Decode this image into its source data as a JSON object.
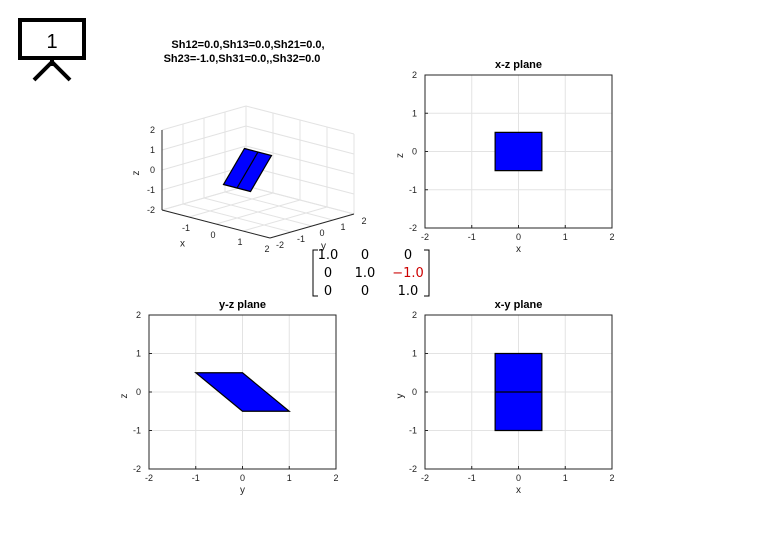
{
  "slide_number": "1",
  "title3d_line1": "Sh12=0.0,Sh13=0.0,Sh21=0.0,",
  "title3d_line2": "Sh23=-1.0,Sh31=0.0,,Sh32=0.0",
  "matrix": [
    [
      "1.0",
      "0",
      "0"
    ],
    [
      "0",
      "1.0",
      "−1.0"
    ],
    [
      "0",
      "0",
      "1.0"
    ]
  ],
  "colors": {
    "shape_fill": "#0000ff",
    "highlight": "#cc0000"
  },
  "icon": "presentation-board-icon",
  "chart_data": [
    {
      "type": "3d-surface",
      "title": "Sh12=0.0,Sh13=0.0,Sh21=0.0,\nSh23=-1.0,Sh31=0.0,,Sh32=0.0",
      "xlabel": "x",
      "ylabel": "y",
      "zlabel": "z",
      "xticks": [
        "-1",
        "0",
        "1",
        "2"
      ],
      "yticks": [
        "-2",
        "-1",
        "0",
        "1",
        "2"
      ],
      "zticks": [
        "-2",
        "-1",
        "0",
        "1",
        "2"
      ],
      "xlim": [
        -2,
        2
      ],
      "ylim": [
        -2,
        2
      ],
      "zlim": [
        -2,
        2
      ],
      "polygon": [
        [
          -0.5,
          -1,
          -0.5
        ],
        [
          0.5,
          -1,
          -0.5
        ],
        [
          0.5,
          0,
          1
        ],
        [
          -0.5,
          0,
          1
        ]
      ]
    },
    {
      "type": "area",
      "title": "x-z plane",
      "xlabel": "x",
      "ylabel": "z",
      "xlim": [
        -2,
        2
      ],
      "ylim": [
        -2,
        2
      ],
      "xticks": [
        "-2",
        "-1",
        "0",
        "1",
        "2"
      ],
      "yticks": [
        "-2",
        "-1",
        "0",
        "1",
        "2"
      ],
      "polygon": [
        [
          -0.5,
          -0.5
        ],
        [
          0.5,
          -0.5
        ],
        [
          0.5,
          0.5
        ],
        [
          -0.5,
          0.5
        ]
      ],
      "midline": null
    },
    {
      "type": "area",
      "title": "y-z plane",
      "xlabel": "y",
      "ylabel": "z",
      "xlim": [
        -2,
        2
      ],
      "ylim": [
        -2,
        2
      ],
      "xticks": [
        "-2",
        "-1",
        "0",
        "1",
        "2"
      ],
      "yticks": [
        "-2",
        "-1",
        "0",
        "1",
        "2"
      ],
      "polygon": [
        [
          -1,
          0.5
        ],
        [
          0,
          0.5
        ],
        [
          1,
          -0.5
        ],
        [
          0,
          -0.5
        ]
      ],
      "midline": null
    },
    {
      "type": "area",
      "title": "x-y plane",
      "xlabel": "x",
      "ylabel": "y",
      "xlim": [
        -2,
        2
      ],
      "ylim": [
        -2,
        2
      ],
      "xticks": [
        "-2",
        "-1",
        "0",
        "1",
        "2"
      ],
      "yticks": [
        "-2",
        "-1",
        "0",
        "1",
        "2"
      ],
      "polygon": [
        [
          -0.5,
          -1
        ],
        [
          0.5,
          -1
        ],
        [
          0.5,
          1
        ],
        [
          -0.5,
          1
        ]
      ],
      "midline": [
        [
          -0.5,
          0
        ],
        [
          0.5,
          0
        ]
      ]
    }
  ]
}
